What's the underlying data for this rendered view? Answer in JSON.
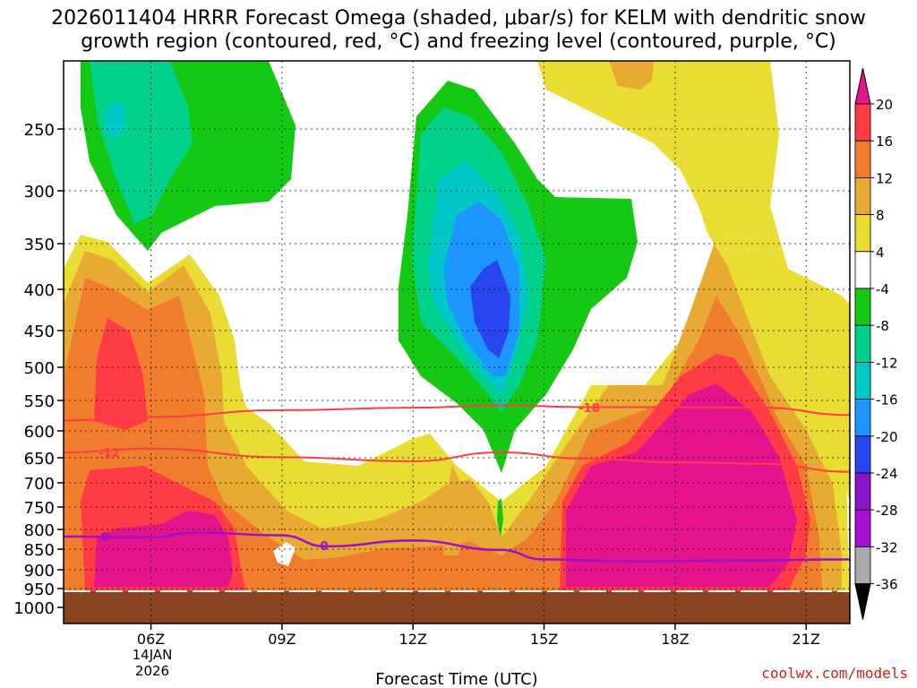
{
  "chart_data": {
    "type": "contour",
    "title_line1": "2026011404 HRRR Forecast Omega (shaded, μbar/s) for KELM with dendritic snow",
    "title_line2": "growth region (contoured, red, °C) and freezing level (contoured, purple, °C)",
    "xlabel": "Forecast Time (UTC)",
    "x_ticks": [
      {
        "label": "06Z",
        "hour": 6
      },
      {
        "label": "09Z",
        "hour": 9
      },
      {
        "label": "12Z",
        "hour": 12
      },
      {
        "label": "15Z",
        "hour": 15
      },
      {
        "label": "18Z",
        "hour": 18
      },
      {
        "label": "21Z",
        "hour": 21
      }
    ],
    "date_label_day": "14JAN",
    "date_label_year": "2026",
    "x_range_hours": [
      4,
      22
    ],
    "y_ticks_hpa": [
      250,
      300,
      350,
      400,
      450,
      500,
      550,
      600,
      650,
      700,
      750,
      800,
      850,
      900,
      950,
      1000
    ],
    "y_axis": "pressure (hPa), decreasing upward",
    "colorbar": {
      "labels": [
        "20",
        "16",
        "12",
        "8",
        "4",
        "-4",
        "-8",
        "-12",
        "-16",
        "-20",
        "-24",
        "-28",
        "-32",
        "-36"
      ],
      "bands": [
        {
          "range": "16 to 20",
          "color": "#ff3c46"
        },
        {
          "range": "12 to 16",
          "color": "#f07d2d"
        },
        {
          "range": "8 to 12",
          "color": "#e8aa32"
        },
        {
          "range": "4 to 8",
          "color": "#e9dc32"
        },
        {
          "range": "-4 to 4",
          "color": "#ffffff"
        },
        {
          "range": "-8 to -4",
          "color": "#14c814"
        },
        {
          "range": "-12 to -8",
          "color": "#00d28c"
        },
        {
          "range": "-16 to -12",
          "color": "#00c8c8"
        },
        {
          "range": "-20 to -16",
          "color": "#1e96ff"
        },
        {
          "range": "-24 to -20",
          "color": "#2846f0"
        },
        {
          "range": "-28 to -24",
          "color": "#8c14c8"
        },
        {
          "range": "-32 to -28",
          "color": "#a50fd2"
        },
        {
          "range": "-36 to -32",
          "color": "#aaaaaa"
        }
      ],
      "top_color": "#e6148c",
      "bottom_color": "#000000"
    },
    "contour_labels": {
      "dgz_upper": "-18",
      "dgz_lower": "-12",
      "freezing": "0"
    },
    "dgz_upper_line": [
      [
        4,
        583
      ],
      [
        6,
        577
      ],
      [
        9,
        566
      ],
      [
        12,
        562
      ],
      [
        14,
        558
      ],
      [
        16,
        561
      ],
      [
        18,
        561
      ],
      [
        20,
        562
      ],
      [
        22,
        574
      ]
    ],
    "dgz_lower_line": [
      [
        4,
        640
      ],
      [
        6,
        633
      ],
      [
        9,
        649
      ],
      [
        12,
        657
      ],
      [
        14,
        640
      ],
      [
        16,
        652
      ],
      [
        18,
        659
      ],
      [
        20,
        662
      ],
      [
        22,
        678
      ]
    ],
    "freezing_line": [
      [
        4,
        818
      ],
      [
        6,
        820
      ],
      [
        7,
        808
      ],
      [
        9,
        815
      ],
      [
        10,
        843
      ],
      [
        12,
        828
      ],
      [
        14,
        852
      ],
      [
        15,
        875
      ],
      [
        17,
        880
      ],
      [
        19,
        878
      ],
      [
        22,
        875
      ]
    ],
    "ground_color": "#8b4422",
    "surface_pressure_hpa": 955
  },
  "credit": "coolwx.com/models"
}
